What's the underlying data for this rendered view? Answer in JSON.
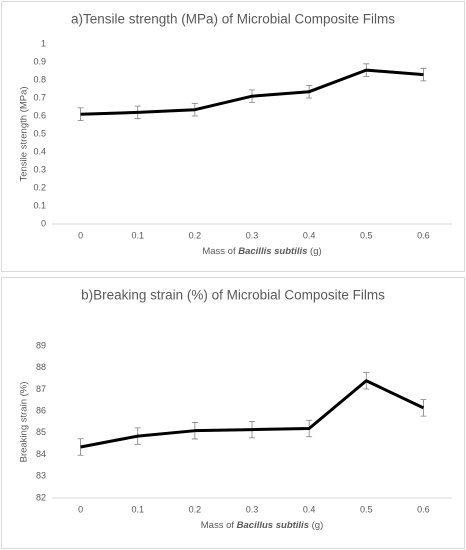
{
  "chart_data": [
    {
      "type": "line",
      "title": "a)Tensile strength (MPa) of Microbial Composite Films",
      "y_label": "Tensile strength (MPa)",
      "x_label": [
        "Mass of ",
        "Bacillis subtilis",
        " (g)"
      ],
      "categories": [
        "0",
        "0.1",
        "0.2",
        "0.3",
        "0.4",
        "0.5",
        "0.6"
      ],
      "values": [
        0.61,
        0.62,
        0.635,
        0.71,
        0.735,
        0.855,
        0.83
      ],
      "errors": [
        0.035,
        0.035,
        0.035,
        0.035,
        0.035,
        0.035,
        0.035
      ],
      "color": "#000000",
      "ylim": [
        0,
        1
      ],
      "yticks": [
        0,
        0.1,
        0.2,
        0.3,
        0.4,
        0.5,
        0.6,
        0.7,
        0.8,
        0.9,
        1
      ],
      "grid": false
    },
    {
      "type": "line",
      "title": "b)Breaking strain (%) of Microbial Composite Films",
      "y_label": "Breaking strain (%)",
      "x_label": [
        "Mass of ",
        "Bacillus subtilis",
        " (g)"
      ],
      "categories": [
        "0",
        "0.1",
        "0.2",
        "0.3",
        "0.4",
        "0.5",
        "0.6"
      ],
      "values": [
        84.35,
        84.85,
        85.1,
        85.15,
        85.2,
        87.4,
        86.15
      ],
      "errors": [
        0.38,
        0.38,
        0.38,
        0.38,
        0.38,
        0.38,
        0.38
      ],
      "color": "#000000",
      "ylim": [
        82,
        89
      ],
      "yticks": [
        82,
        83,
        84,
        85,
        86,
        87,
        88,
        89
      ],
      "grid": false
    }
  ]
}
